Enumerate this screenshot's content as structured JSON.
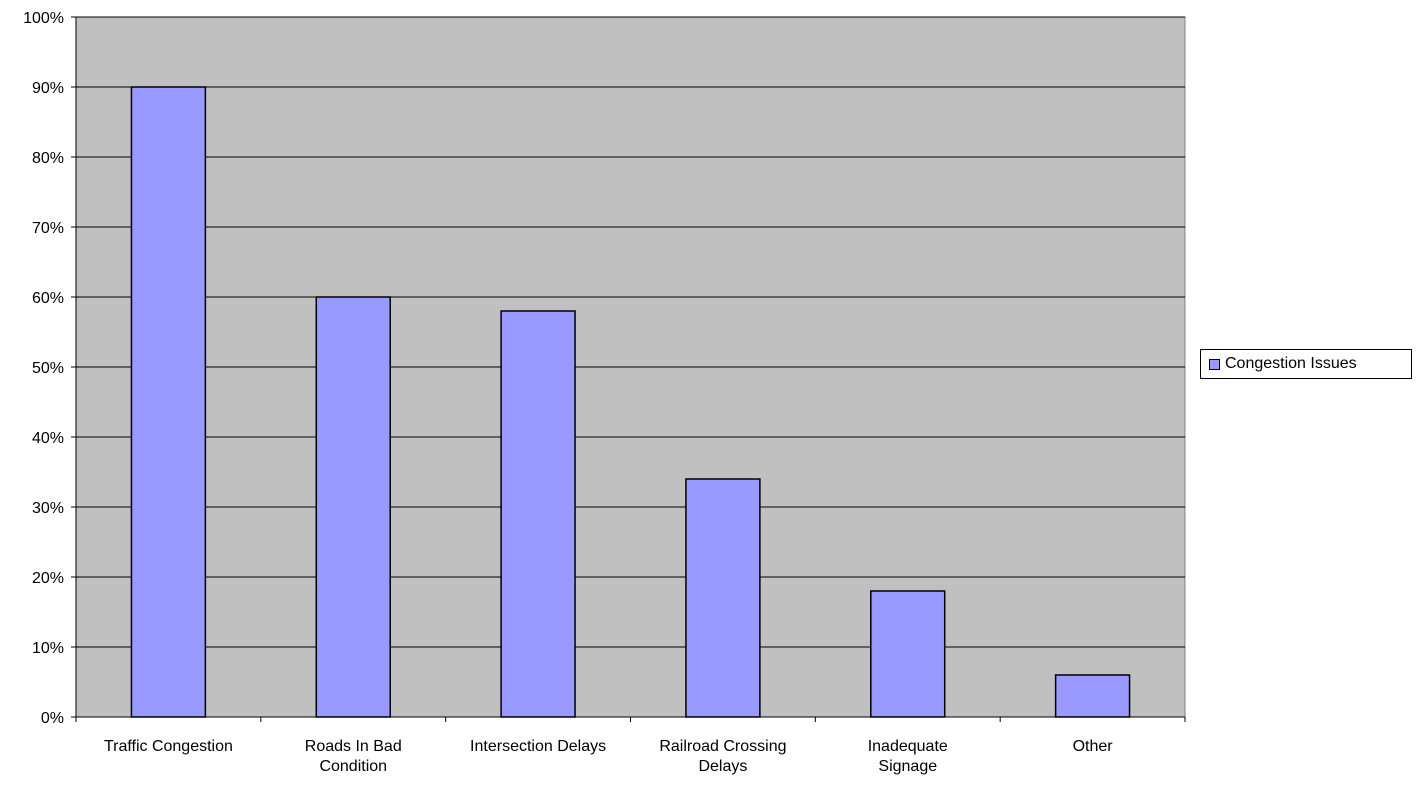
{
  "chart_data": {
    "type": "bar",
    "categories": [
      [
        "Traffic Congestion"
      ],
      [
        "Roads In Bad",
        "Condition"
      ],
      [
        "Intersection Delays"
      ],
      [
        "Railroad Crossing",
        "Delays"
      ],
      [
        "Inadequate",
        "Signage"
      ],
      [
        "Other"
      ]
    ],
    "series": [
      {
        "name": "Congestion Issues",
        "values": [
          90,
          60,
          58,
          34,
          18,
          6
        ]
      }
    ],
    "ylim": [
      0,
      100
    ],
    "yticks": [
      "0%",
      "10%",
      "20%",
      "30%",
      "40%",
      "50%",
      "60%",
      "70%",
      "80%",
      "90%",
      "100%"
    ],
    "grid": true,
    "legend_position": "right",
    "colors": {
      "plot_background": "#C0C0C0",
      "bar_fill": "#9999FF",
      "bar_stroke": "#000000",
      "gridline": "#000000"
    }
  }
}
